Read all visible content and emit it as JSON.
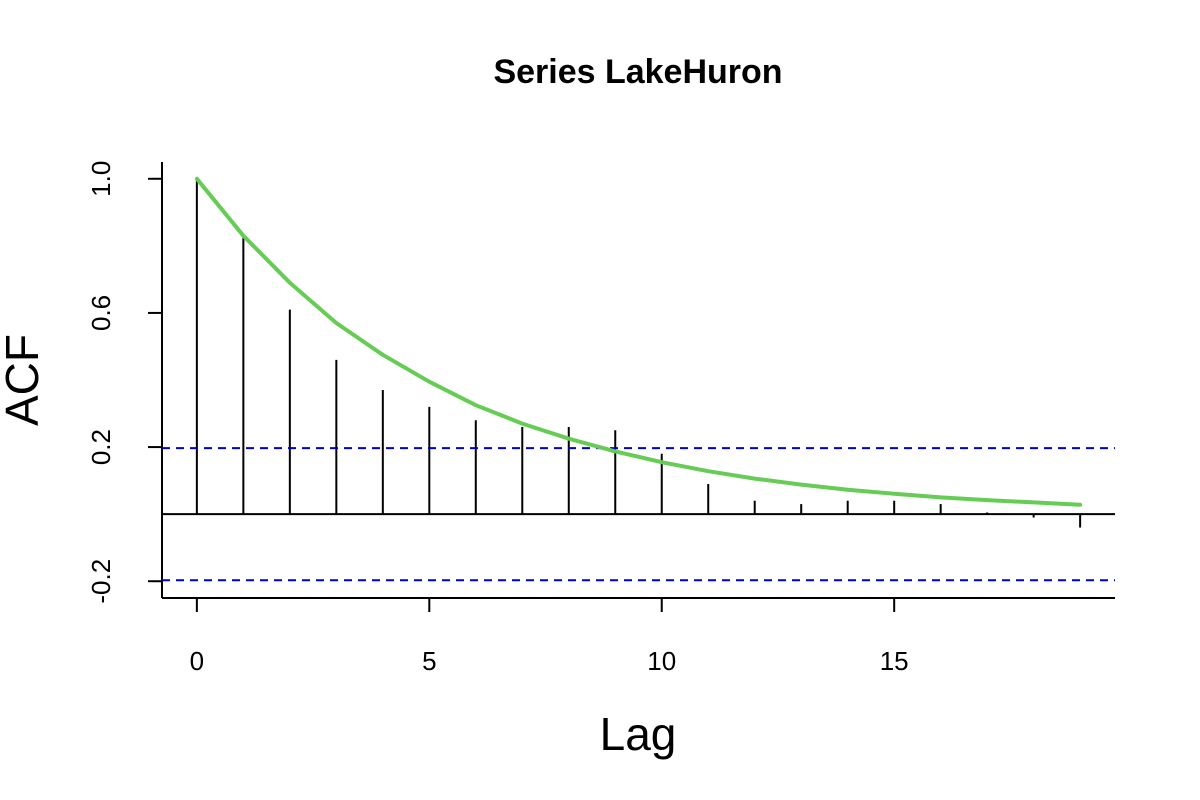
{
  "chart_data": {
    "type": "bar",
    "title": "Series  LakeHuron",
    "xlabel": "Lag",
    "ylabel": "ACF",
    "xlim": [
      -0.75,
      19.75
    ],
    "ylim": [
      -0.25,
      1.05
    ],
    "x_ticks": [
      0,
      5,
      10,
      15
    ],
    "x_tick_labels": [
      "0",
      "5",
      "10",
      "15"
    ],
    "y_ticks": [
      -0.2,
      0.2,
      0.6,
      1.0
    ],
    "y_tick_labels": [
      "-0.2",
      "0.2",
      "0.6",
      "1.0"
    ],
    "grid": false,
    "series": [
      {
        "kind": "acf-bars",
        "x": [
          0,
          1,
          2,
          3,
          4,
          5,
          6,
          7,
          8,
          9,
          10,
          11,
          12,
          13,
          14,
          15,
          16,
          17,
          18,
          19
        ],
        "values": [
          1.0,
          0.83,
          0.61,
          0.46,
          0.37,
          0.32,
          0.28,
          0.26,
          0.26,
          0.25,
          0.18,
          0.09,
          0.04,
          0.03,
          0.04,
          0.04,
          0.03,
          0.005,
          -0.01,
          -0.04
        ],
        "color": "#000000"
      },
      {
        "kind": "confidence-band",
        "values": [
          0.197,
          -0.197
        ],
        "color": "#0000cc",
        "style": "dashed"
      },
      {
        "kind": "fitted-curve",
        "x": [
          0,
          1,
          2,
          3,
          4,
          5,
          6,
          7,
          8,
          9,
          10,
          11,
          12,
          13,
          14,
          15,
          16,
          17,
          18,
          19
        ],
        "values": [
          1.0,
          0.83,
          0.69,
          0.57,
          0.475,
          0.395,
          0.325,
          0.27,
          0.225,
          0.187,
          0.155,
          0.128,
          0.106,
          0.088,
          0.073,
          0.061,
          0.05,
          0.042,
          0.035,
          0.028
        ],
        "color": "#66cc55"
      }
    ]
  }
}
